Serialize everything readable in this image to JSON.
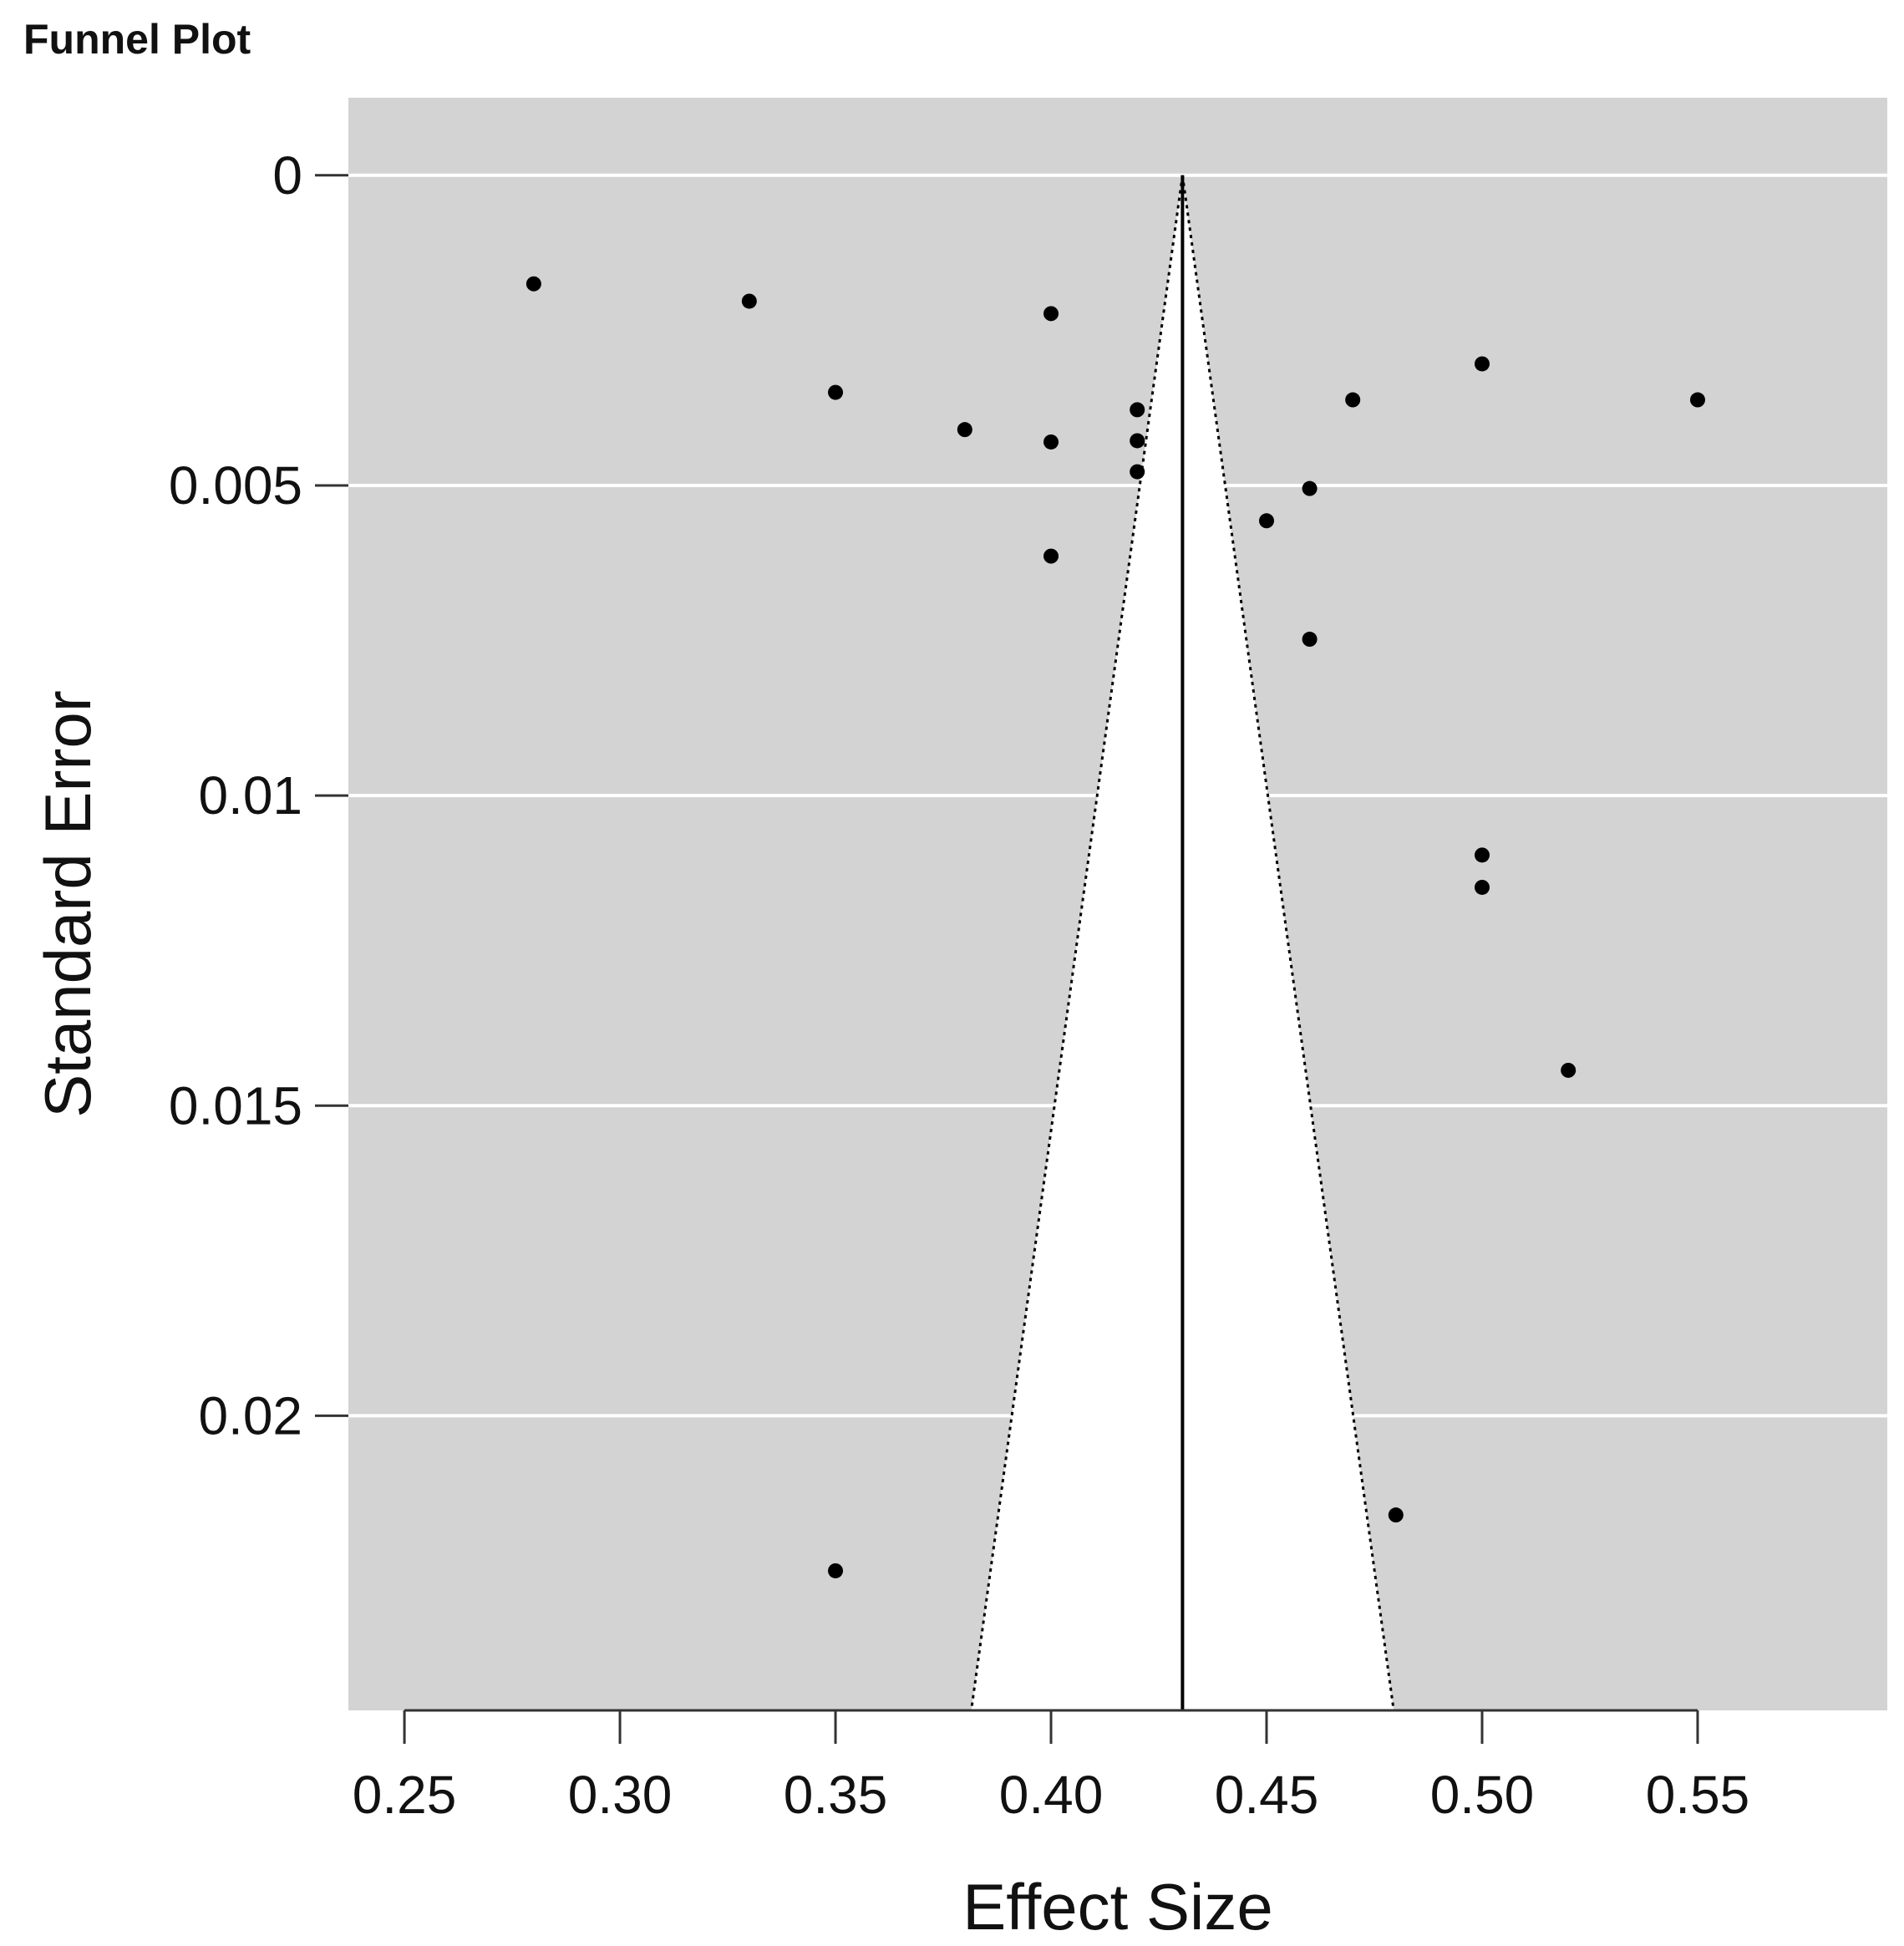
{
  "chart_data": {
    "type": "scatter",
    "title": "Funnel Plot",
    "xlabel": "Effect Size",
    "ylabel": "Standard Error",
    "x_ticks": [
      "0.25",
      "0.30",
      "0.35",
      "0.40",
      "0.45",
      "0.50",
      "0.55"
    ],
    "y_ticks": [
      "0",
      "0.005",
      "0.01",
      "0.015",
      "0.02"
    ],
    "xlim": [
      0.237,
      0.594
    ],
    "ylim": [
      -0.00125,
      0.02475
    ],
    "y_reversed": true,
    "grid": "horizontal",
    "pooled_effect": 0.4305,
    "funnel_bounds_at_bottom": [
      0.3815,
      0.4795
    ],
    "points": [
      {
        "x": 0.28,
        "y": 0.00175
      },
      {
        "x": 0.33,
        "y": 0.00203
      },
      {
        "x": 0.4,
        "y": 0.00223
      },
      {
        "x": 0.5,
        "y": 0.00304
      },
      {
        "x": 0.35,
        "y": 0.0035
      },
      {
        "x": 0.47,
        "y": 0.00362
      },
      {
        "x": 0.55,
        "y": 0.00362
      },
      {
        "x": 0.42,
        "y": 0.00378
      },
      {
        "x": 0.38,
        "y": 0.0041
      },
      {
        "x": 0.4,
        "y": 0.0043
      },
      {
        "x": 0.42,
        "y": 0.00428
      },
      {
        "x": 0.42,
        "y": 0.00478
      },
      {
        "x": 0.46,
        "y": 0.00505
      },
      {
        "x": 0.45,
        "y": 0.00557
      },
      {
        "x": 0.4,
        "y": 0.00614
      },
      {
        "x": 0.46,
        "y": 0.00748
      },
      {
        "x": 0.5,
        "y": 0.01096
      },
      {
        "x": 0.5,
        "y": 0.01148
      },
      {
        "x": 0.52,
        "y": 0.01443
      },
      {
        "x": 0.48,
        "y": 0.0216
      },
      {
        "x": 0.35,
        "y": 0.0225
      }
    ],
    "colors": {
      "panel": "#d3d3d3",
      "funnel": "#ffffff",
      "grid": "#ffffff",
      "points": "#000000"
    }
  }
}
